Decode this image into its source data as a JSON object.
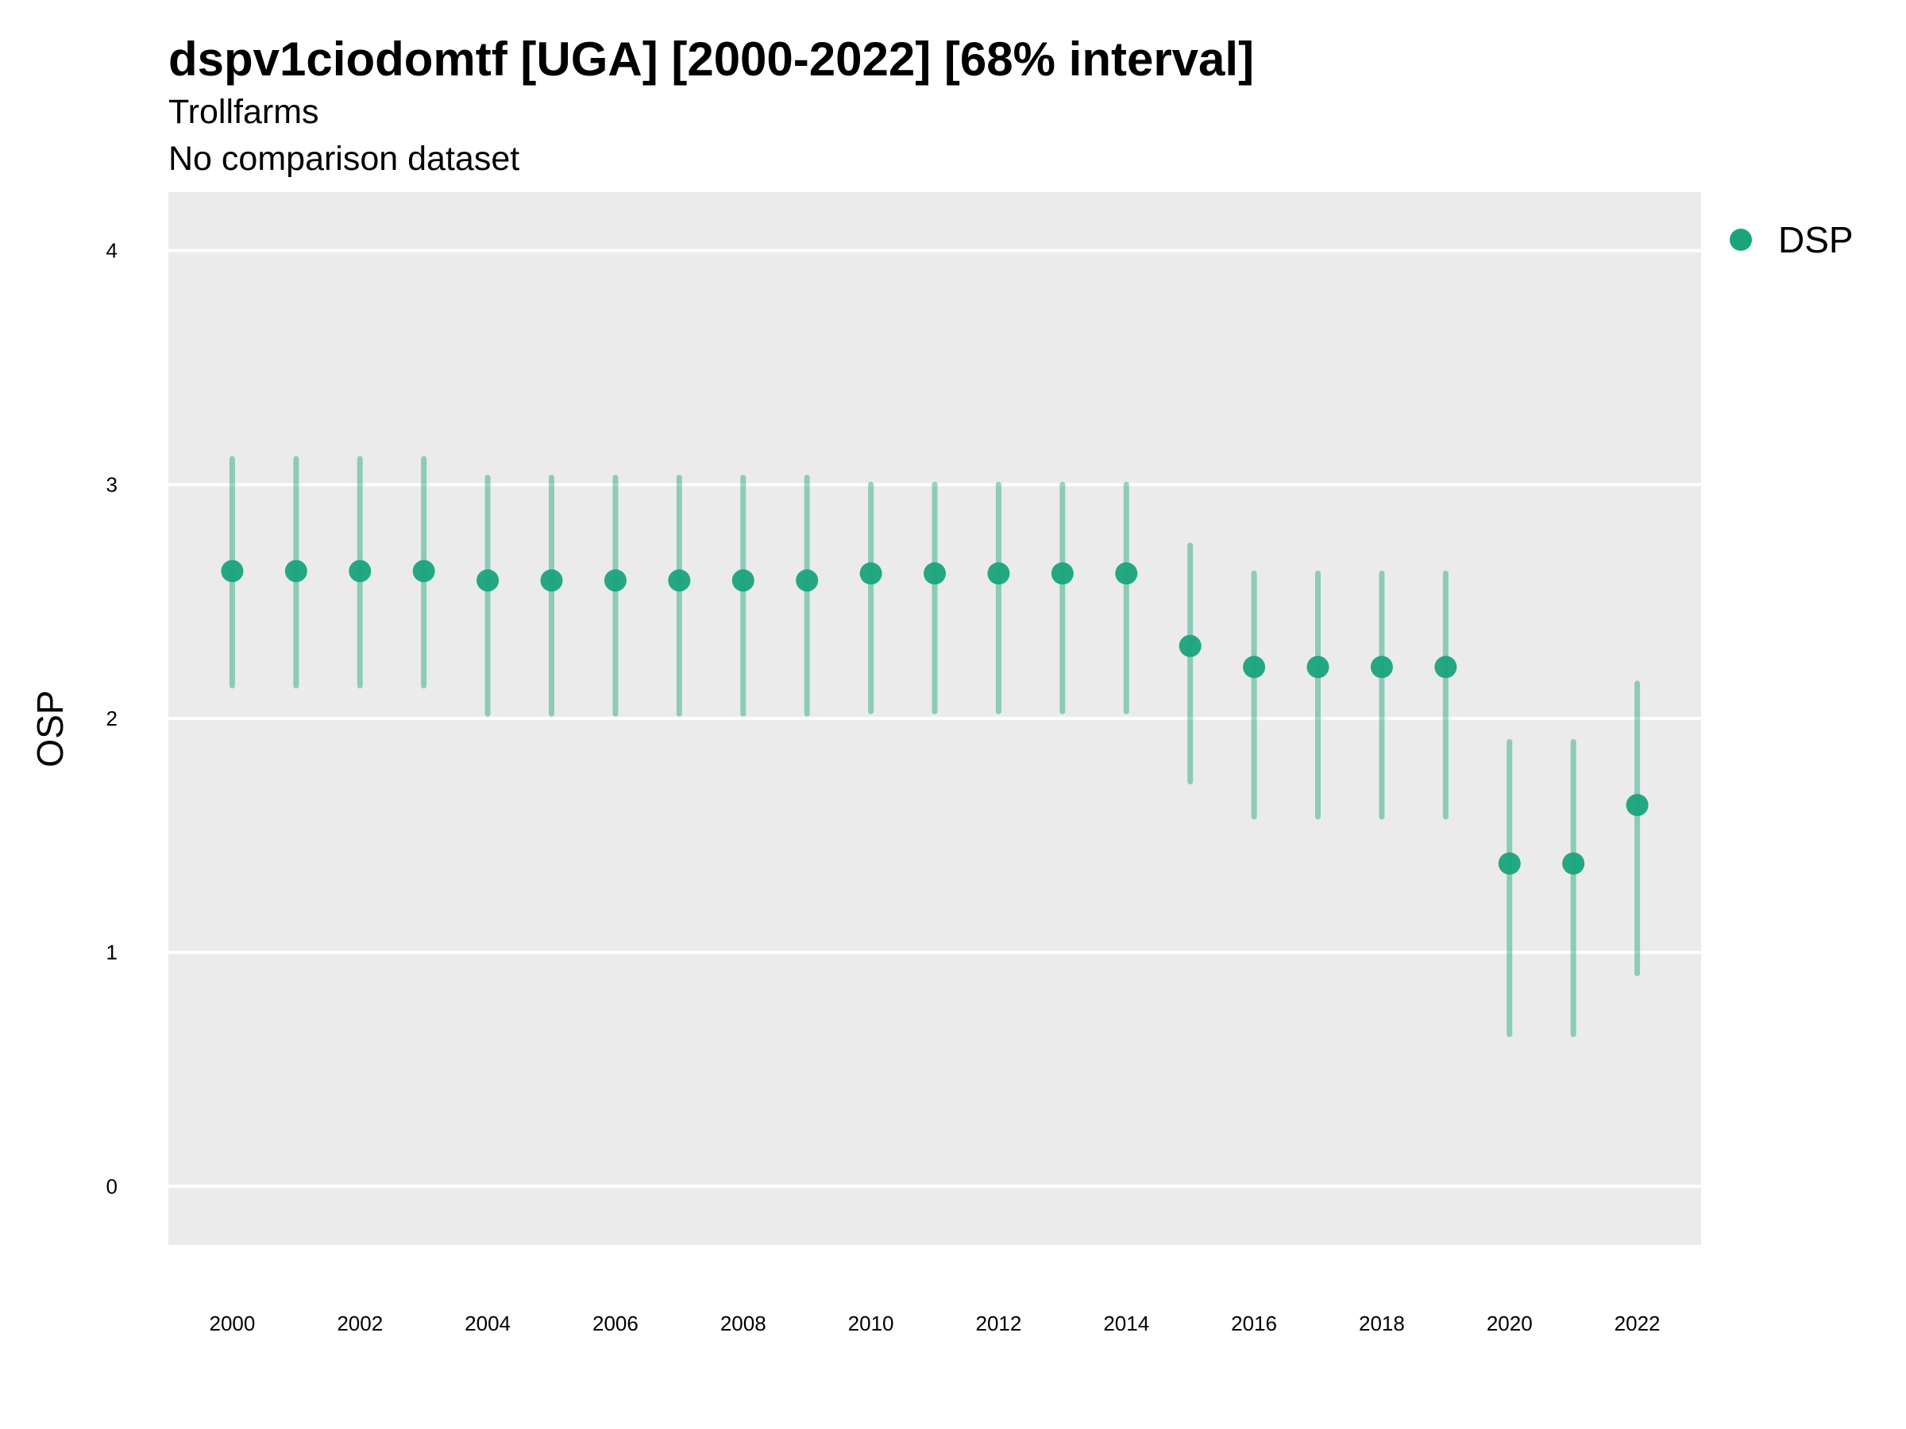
{
  "chart_data": {
    "type": "scatter",
    "title": "dspv1ciodomtf [UGA] [2000-2022] [68% interval]",
    "subtitle": "Trollfarms",
    "subtitle2": "No comparison dataset",
    "xlabel": "",
    "ylabel": "OSP",
    "xlim": [
      1999,
      2023
    ],
    "ylim": [
      -0.25,
      4.25
    ],
    "x_ticks": [
      2000,
      2002,
      2004,
      2006,
      2008,
      2010,
      2012,
      2014,
      2016,
      2018,
      2020,
      2022
    ],
    "y_ticks": [
      0,
      1,
      2,
      3,
      4
    ],
    "grid": true,
    "legend_position": "right",
    "series": [
      {
        "name": "DSP",
        "color": "#1aa47c",
        "x": [
          2000,
          2001,
          2002,
          2003,
          2004,
          2005,
          2006,
          2007,
          2008,
          2009,
          2010,
          2011,
          2012,
          2013,
          2014,
          2015,
          2016,
          2017,
          2018,
          2019,
          2020,
          2021,
          2022
        ],
        "y": [
          2.63,
          2.63,
          2.63,
          2.63,
          2.59,
          2.59,
          2.59,
          2.59,
          2.59,
          2.59,
          2.62,
          2.62,
          2.62,
          2.62,
          2.62,
          2.31,
          2.22,
          2.22,
          2.22,
          2.22,
          1.38,
          1.38,
          1.63
        ],
        "lower": [
          2.14,
          2.14,
          2.14,
          2.14,
          2.02,
          2.02,
          2.02,
          2.02,
          2.02,
          2.02,
          2.03,
          2.03,
          2.03,
          2.03,
          2.03,
          1.73,
          1.58,
          1.58,
          1.58,
          1.58,
          0.65,
          0.65,
          0.91
        ],
        "upper": [
          3.11,
          3.11,
          3.11,
          3.11,
          3.03,
          3.03,
          3.03,
          3.03,
          3.03,
          3.03,
          3.0,
          3.0,
          3.0,
          3.0,
          3.0,
          2.74,
          2.62,
          2.62,
          2.62,
          2.62,
          1.9,
          1.9,
          2.15
        ]
      }
    ]
  }
}
